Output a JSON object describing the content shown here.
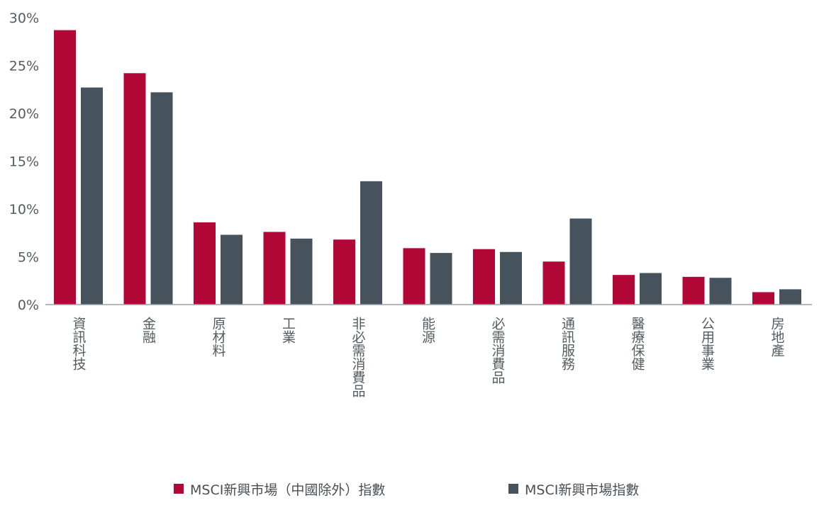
{
  "chart_data": {
    "type": "bar",
    "title": "",
    "xlabel": "",
    "ylabel": "",
    "ylim": [
      0,
      30
    ],
    "yticks": [
      "0%",
      "5%",
      "10%",
      "15%",
      "20%",
      "25%",
      "30%"
    ],
    "ytick_values": [
      0,
      5,
      10,
      15,
      20,
      25,
      30
    ],
    "grid": false,
    "legend_position": "bottom",
    "categories": [
      "資訊科技",
      "金融",
      "原材料",
      "工業",
      "非必需消費品",
      "能源",
      "必需消費品",
      "通訊服務",
      "醫療保健",
      "公用事業",
      "房地產"
    ],
    "series": [
      {
        "name": "MSCI新興市場（中國除外）指數",
        "color": "#b20838",
        "values": [
          28.7,
          24.2,
          8.6,
          7.6,
          6.8,
          5.9,
          5.8,
          4.5,
          3.1,
          2.9,
          1.3
        ]
      },
      {
        "name": "MSCI新興市場指數",
        "color": "#46535d",
        "values": [
          22.7,
          22.2,
          7.3,
          6.9,
          12.9,
          5.4,
          5.5,
          9.0,
          3.3,
          2.8,
          1.6
        ]
      }
    ]
  }
}
